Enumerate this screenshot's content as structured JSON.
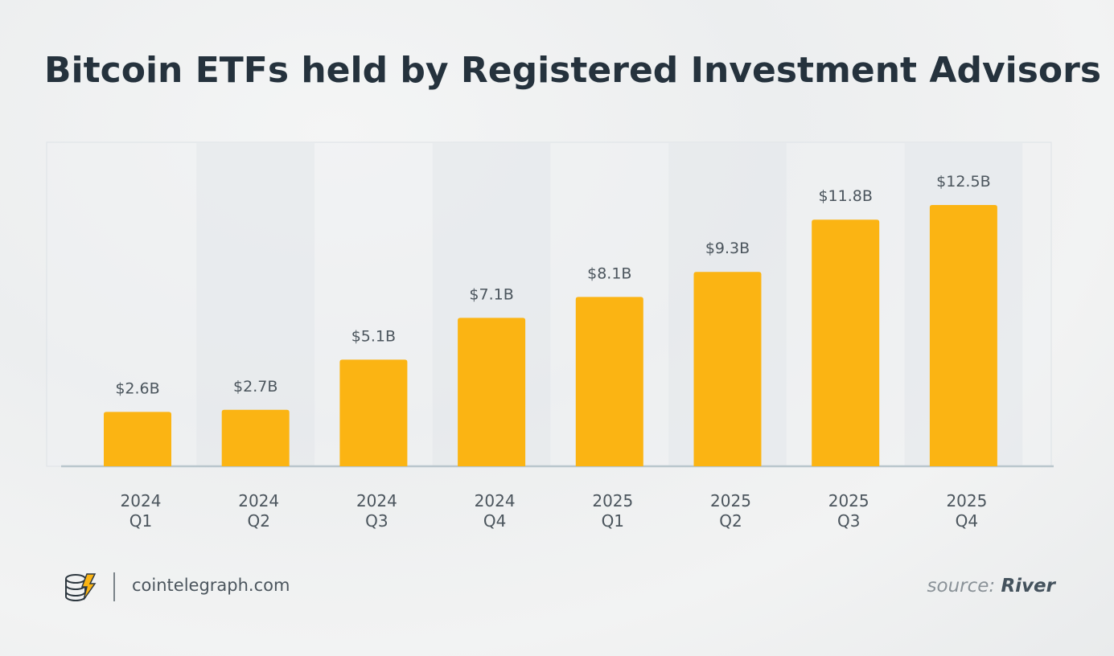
{
  "title": "Bitcoin ETFs held by Registered Investment Advisors",
  "footer": {
    "site": "cointelegraph.com",
    "source_label": "source:",
    "source_name": "River",
    "logo_icon": "cointelegraph-logo-icon"
  },
  "colors": {
    "bar": "#fbb413",
    "title": "#25323d",
    "label": "#4b555d"
  },
  "chart_data": {
    "type": "bar",
    "title": "Bitcoin ETFs held by Registered Investment Advisors",
    "categories": [
      [
        "2024",
        "Q1"
      ],
      [
        "2024",
        "Q2"
      ],
      [
        "2024",
        "Q3"
      ],
      [
        "2024",
        "Q4"
      ],
      [
        "2025",
        "Q1"
      ],
      [
        "2025",
        "Q2"
      ],
      [
        "2025",
        "Q3"
      ],
      [
        "2025",
        "Q4"
      ]
    ],
    "values": [
      2.6,
      2.7,
      5.1,
      7.1,
      8.1,
      9.3,
      11.8,
      12.5
    ],
    "value_labels": [
      "$2.6B",
      "$2.7B",
      "$5.1B",
      "$7.1B",
      "$8.1B",
      "$9.3B",
      "$11.8B",
      "$12.5B"
    ],
    "ylim": [
      0,
      15.5
    ],
    "grid": false,
    "legend": "none"
  }
}
